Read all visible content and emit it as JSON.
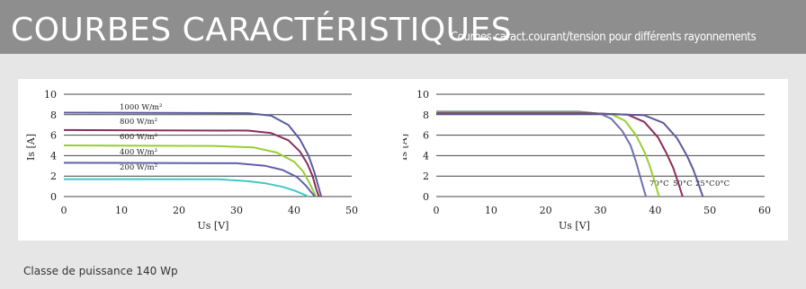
{
  "header": {
    "title": "COURBES CARACTÉRISTIQUES",
    "subtitle": "Courbes caract.courant/tension pour différents rayonnements"
  },
  "footer": {
    "text": "Classe de puissance 140 Wp"
  },
  "colors": {
    "header_bg": "#8e8e8e",
    "page_bg": "#e6e6e6",
    "panel_bg": "#ffffff",
    "grid": "#444444"
  },
  "chart_data": [
    {
      "type": "line",
      "xlabel": "Us [V]",
      "ylabel": "Is [A]",
      "xlim": [
        0,
        50
      ],
      "ylim": [
        0,
        10
      ],
      "xticks": [
        "0",
        "10",
        "20",
        "30",
        "40",
        "50"
      ],
      "yticks": [
        "0",
        "2",
        "4",
        "6",
        "8",
        "10"
      ],
      "grid": "horizontal",
      "series": [
        {
          "name": "1000 W/m²",
          "color": "#5b5b9c",
          "x": [
            0,
            32,
            36,
            39,
            41,
            42.5,
            43.5,
            44.2,
            44.7
          ],
          "y": [
            8.2,
            8.15,
            7.9,
            7.0,
            5.6,
            4.0,
            2.4,
            1.0,
            0
          ]
        },
        {
          "name": "800 W/m²",
          "color": "#8b2d5d",
          "x": [
            0,
            32,
            36,
            39,
            41,
            42.3,
            43.2,
            43.8,
            44.3
          ],
          "y": [
            6.5,
            6.45,
            6.2,
            5.5,
            4.4,
            3.2,
            2.0,
            0.8,
            0
          ]
        },
        {
          "name": "600 W/m²",
          "color": "#9acd32",
          "x": [
            0,
            26,
            33,
            37,
            40,
            41.5,
            42.5,
            43.3,
            43.8
          ],
          "y": [
            5.0,
            4.95,
            4.8,
            4.3,
            3.4,
            2.5,
            1.5,
            0.6,
            0
          ]
        },
        {
          "name": "400 W/m²",
          "color": "#6060a8",
          "x": [
            0,
            30,
            35,
            38,
            40.5,
            42,
            43,
            43.6
          ],
          "y": [
            3.3,
            3.25,
            3.0,
            2.6,
            1.9,
            1.1,
            0.4,
            0
          ]
        },
        {
          "name": "200 W/m²",
          "color": "#40c8c8",
          "x": [
            0,
            27,
            32,
            35,
            38,
            40,
            41.5,
            42.5
          ],
          "y": [
            1.7,
            1.68,
            1.5,
            1.3,
            0.95,
            0.6,
            0.25,
            0
          ]
        }
      ]
    },
    {
      "type": "line",
      "xlabel": "Us [V]",
      "ylabel": "Is [A]",
      "xlim": [
        0,
        60
      ],
      "ylim": [
        0,
        10
      ],
      "xticks": [
        "0",
        "10",
        "20",
        "30",
        "40",
        "50",
        "60"
      ],
      "yticks": [
        "0",
        "2",
        "4",
        "6",
        "8",
        "10"
      ],
      "grid": "horizontal",
      "series": [
        {
          "name": "70°C",
          "color": "#7070b0",
          "x": [
            0,
            26,
            30,
            32,
            34,
            35.5,
            36.5,
            37.5,
            38.3
          ],
          "y": [
            8.3,
            8.3,
            8.1,
            7.6,
            6.4,
            5.0,
            3.4,
            1.5,
            0
          ]
        },
        {
          "name": "50°C",
          "color": "#9acd32",
          "x": [
            0,
            26,
            32,
            34.5,
            36.5,
            38,
            39,
            40,
            40.7
          ],
          "y": [
            8.2,
            8.2,
            8.05,
            7.4,
            6.0,
            4.4,
            3.0,
            1.3,
            0
          ]
        },
        {
          "name": "25°C",
          "color": "#8b2d5d",
          "x": [
            0,
            28,
            35,
            38,
            40.5,
            42,
            43.3,
            44.3,
            45
          ],
          "y": [
            8.15,
            8.15,
            8.0,
            7.3,
            5.8,
            4.3,
            2.8,
            1.2,
            0
          ]
        },
        {
          "name": "0°C",
          "color": "#5b5b9c",
          "x": [
            0,
            30,
            38,
            41.5,
            44,
            45.8,
            47,
            48,
            48.7
          ],
          "y": [
            8.1,
            8.1,
            7.95,
            7.2,
            5.7,
            4.0,
            2.6,
            1.1,
            0
          ]
        }
      ]
    }
  ]
}
